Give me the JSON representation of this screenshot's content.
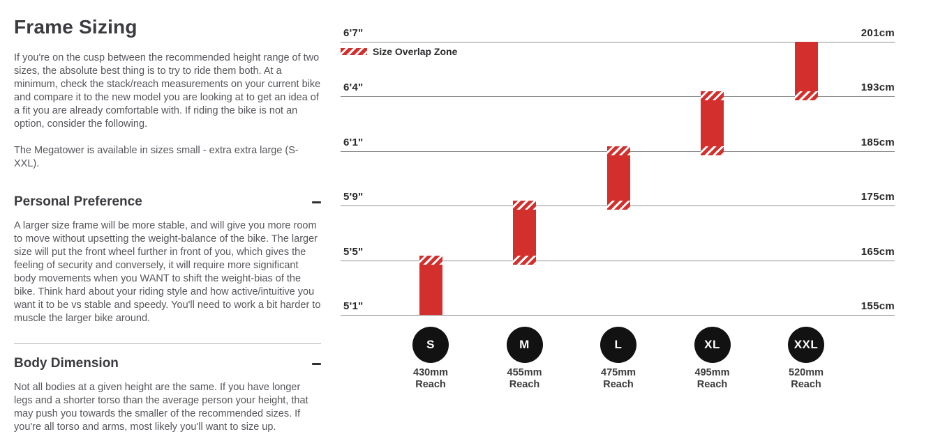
{
  "intro": {
    "heading": "Frame Sizing",
    "paragraphs": [
      "If you're on the cusp between the recommended height range of two sizes, the absolute best thing is to try to ride them both. At a minimum, check the stack/reach measurements on your current bike and compare it to the new model you are looking at to get an idea of a fit you are already comfortable with. If riding the bike is not an option, consider the following.",
      "The Megatower is available in sizes small - extra extra large (S-XXL)."
    ]
  },
  "sections": [
    {
      "heading": "Personal Preference",
      "toggle_icon": "minus",
      "body": "A larger size frame will be more stable, and will give you more room to move without upsetting the weight-balance of the bike. The larger size will put the front wheel further in front of you, which gives the feeling of security and conversely, it will require more significant body movements when you WANT to shift the weight-bias of the bike. Think hard about your riding style and how active/intuitive you want it to be vs stable and speedy. You'll need to work a bit harder to muscle the larger bike around."
    },
    {
      "heading": "Body Dimension",
      "toggle_icon": "minus",
      "body": "Not all bodies at a given height are the same. If you have longer legs and a shorter torso than the average person your height, that may push you towards the smaller of the recommended sizes. If you're all torso and arms, most likely you'll want to size up."
    }
  ],
  "chart_data": {
    "type": "bar",
    "legend": {
      "label": "Size Overlap Zone",
      "swatch": "red-diagonal-hatch"
    },
    "height_lines": [
      {
        "imperial": "6'7\"",
        "metric": "201cm"
      },
      {
        "imperial": "6'4\"",
        "metric": "193cm"
      },
      {
        "imperial": "6'1\"",
        "metric": "185cm"
      },
      {
        "imperial": "5'9\"",
        "metric": "175cm"
      },
      {
        "imperial": "5'5\"",
        "metric": "165cm"
      },
      {
        "imperial": "5'1\"",
        "metric": "155cm"
      }
    ],
    "reach_word": "Reach",
    "sizes": [
      {
        "label": "S",
        "reach": "430mm",
        "height_min_imperial": "5'1\"",
        "height_max_imperial": "5'5\"",
        "height_min_metric": "155cm",
        "height_max_metric": "165cm",
        "overlap_top": true,
        "overlap_bottom": false
      },
      {
        "label": "M",
        "reach": "455mm",
        "height_min_imperial": "5'5\"",
        "height_max_imperial": "5'9\"",
        "height_min_metric": "165cm",
        "height_max_metric": "175cm",
        "overlap_top": true,
        "overlap_bottom": true
      },
      {
        "label": "L",
        "reach": "475mm",
        "height_min_imperial": "5'9\"",
        "height_max_imperial": "6'1\"",
        "height_min_metric": "175cm",
        "height_max_metric": "185cm",
        "overlap_top": true,
        "overlap_bottom": true
      },
      {
        "label": "XL",
        "reach": "495mm",
        "height_min_imperial": "6'1\"",
        "height_max_imperial": "6'4\"",
        "height_min_metric": "185cm",
        "height_max_metric": "193cm",
        "overlap_top": true,
        "overlap_bottom": true
      },
      {
        "label": "XXL",
        "reach": "520mm",
        "height_min_imperial": "6'4\"",
        "height_max_imperial": "6'7\"",
        "height_min_metric": "193cm",
        "height_max_metric": "201cm",
        "overlap_top": false,
        "overlap_bottom": true
      }
    ],
    "colors": {
      "bar_red": "#d3302d",
      "hatch_gap": "#ffffff",
      "circle_black": "#121212",
      "gridline": "#8f8f8f"
    }
  }
}
